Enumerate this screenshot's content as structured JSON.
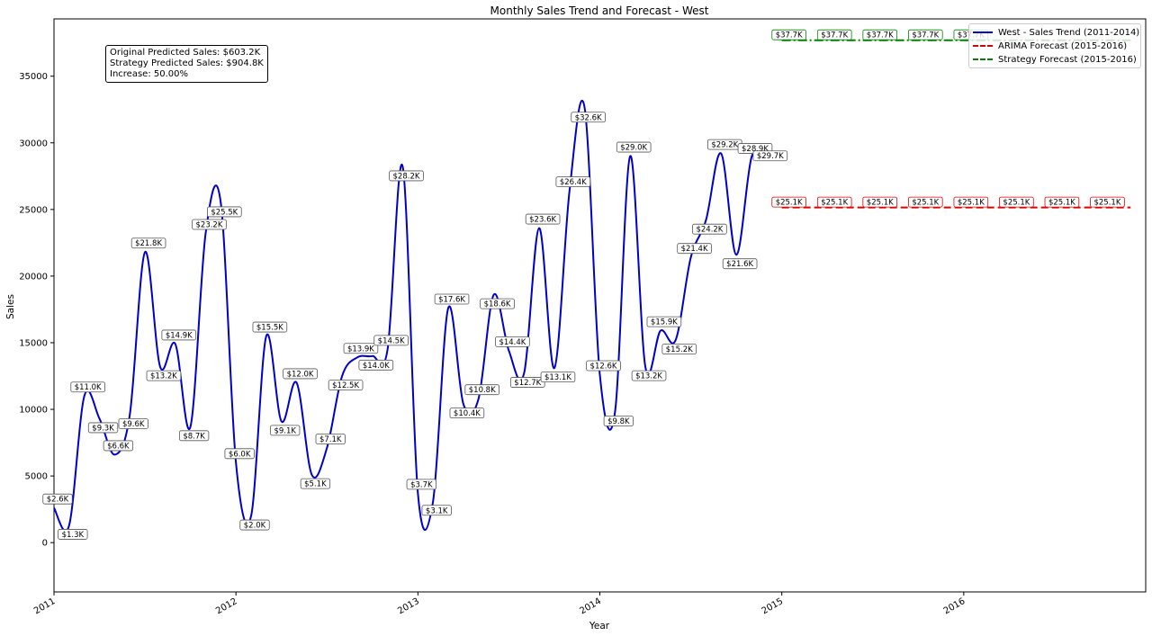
{
  "chart_data": {
    "type": "line",
    "title": "Monthly Sales Trend and Forecast - West",
    "xlabel": "Year",
    "ylabel": "Sales",
    "ylim": [
      -3700,
      39300
    ],
    "y_ticks": [
      0,
      5000,
      10000,
      15000,
      20000,
      25000,
      30000,
      35000
    ],
    "x_ticks": [
      "2011",
      "2012",
      "2013",
      "2014",
      "2015",
      "2016"
    ],
    "xlim": [
      "2011-01",
      "2017-01"
    ],
    "grid": false,
    "legend_position": "top-right",
    "series": [
      {
        "name": "West - Sales Trend (2011-2014)",
        "color": "#0000cc",
        "style": "solid",
        "x": [
          "2011-01",
          "2011-02",
          "2011-03",
          "2011-04",
          "2011-05",
          "2011-06",
          "2011-07",
          "2011-08",
          "2011-09",
          "2011-10",
          "2011-11",
          "2011-12",
          "2012-01",
          "2012-02",
          "2012-03",
          "2012-04",
          "2012-05",
          "2012-06",
          "2012-07",
          "2012-08",
          "2012-09",
          "2012-10",
          "2012-11",
          "2012-12",
          "2013-01",
          "2013-02",
          "2013-03",
          "2013-04",
          "2013-05",
          "2013-06",
          "2013-07",
          "2013-08",
          "2013-09",
          "2013-10",
          "2013-11",
          "2013-12",
          "2014-01",
          "2014-02",
          "2014-03",
          "2014-04",
          "2014-05",
          "2014-06",
          "2014-07",
          "2014-08",
          "2014-09",
          "2014-10",
          "2014-11",
          "2014-12"
        ],
        "values": [
          2600,
          1300,
          11000,
          9300,
          6600,
          9600,
          21800,
          13200,
          14900,
          8700,
          23200,
          25500,
          6000,
          2000,
          15500,
          9100,
          12000,
          5100,
          7100,
          12500,
          13900,
          14000,
          14500,
          28200,
          3700,
          3100,
          17600,
          10400,
          10800,
          18600,
          14400,
          12700,
          23600,
          13100,
          26400,
          32600,
          12600,
          9800,
          29000,
          13200,
          15900,
          15200,
          21400,
          24200,
          29200,
          21600,
          28900,
          29700
        ],
        "labels": [
          "$2.6K",
          "$1.3K",
          "$11.0K",
          "$9.3K",
          "$6.6K",
          "$9.6K",
          "$21.8K",
          "$13.2K",
          "$14.9K",
          "$8.7K",
          "$23.2K",
          "$25.5K",
          "$6.0K",
          "$2.0K",
          "$15.5K",
          "$9.1K",
          "$12.0K",
          "$5.1K",
          "$7.1K",
          "$12.5K",
          "$13.9K",
          "$14.0K",
          "$14.5K",
          "$28.2K",
          "$3.7K",
          "$3.1K",
          "$17.6K",
          "$10.4K",
          "$10.8K",
          "$18.6K",
          "$14.4K",
          "$12.7K",
          "$23.6K",
          "$13.1K",
          "$26.4K",
          "$32.6K",
          "$12.6K",
          "$9.8K",
          "$29.0K",
          "$13.2K",
          "$15.9K",
          "$15.2K",
          "$21.4K",
          "$24.2K",
          "$29.2K",
          "$21.6K",
          "$28.9K",
          "$29.7K"
        ]
      },
      {
        "name": "ARIMA Forecast (2015-2016)",
        "color": "#dd0000",
        "style": "dashed",
        "x": [
          "2015-01",
          "2016-12"
        ],
        "values": [
          25150,
          25150
        ],
        "label_text": "$25.1K",
        "label_count": 8
      },
      {
        "name": "Strategy Forecast (2015-2016)",
        "color": "#008000",
        "style": "dashdot",
        "x": [
          "2015-01",
          "2016-12"
        ],
        "values": [
          37700,
          37700
        ],
        "label_text": "$37.7K",
        "label_count": 5
      }
    ],
    "annotation": {
      "lines": [
        "Original Predicted Sales: $603.2K",
        "Strategy Predicted Sales: $904.8K",
        "Increase: 50.00%"
      ]
    }
  }
}
